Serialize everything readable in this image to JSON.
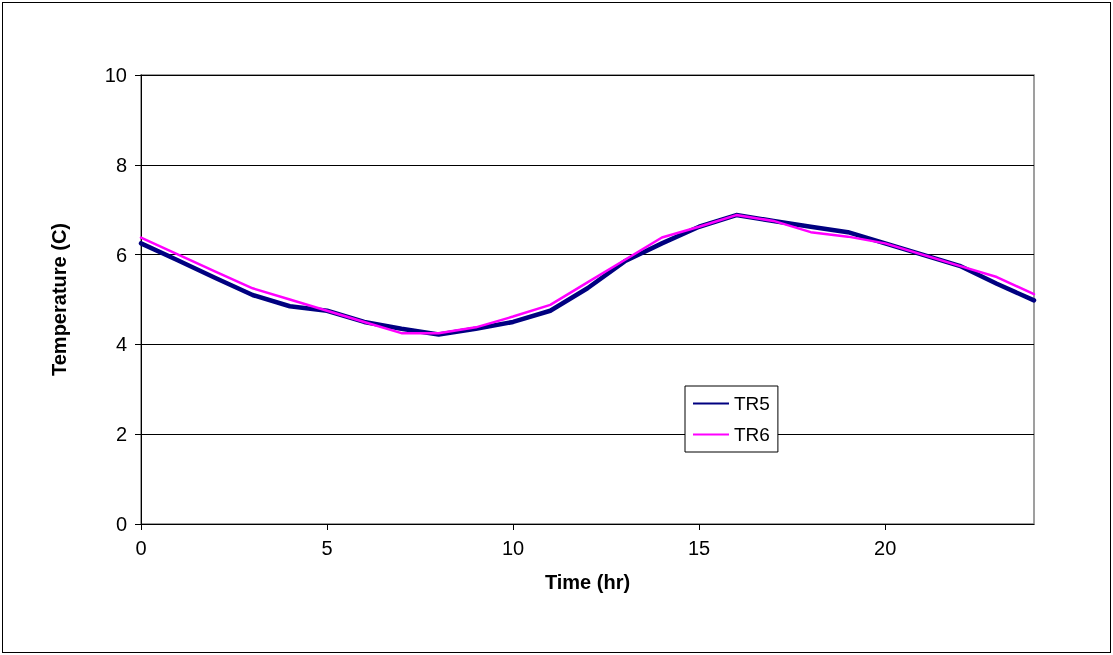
{
  "chart_data": {
    "type": "line",
    "xlabel": "Time (hr)",
    "ylabel": "Temperature (C)",
    "x": [
      0,
      1,
      2,
      3,
      4,
      5,
      6,
      7,
      8,
      9,
      10,
      11,
      12,
      13,
      14,
      15,
      16,
      17,
      18,
      19,
      20,
      21,
      22,
      23,
      24
    ],
    "series": [
      {
        "name": "TR5",
        "color": "#000080",
        "values": [
          6.25,
          5.87,
          5.48,
          5.1,
          4.85,
          4.75,
          4.5,
          4.35,
          4.22,
          4.35,
          4.5,
          4.75,
          5.25,
          5.85,
          6.25,
          6.62,
          6.88,
          6.75,
          6.62,
          6.5,
          6.25,
          6.0,
          5.75,
          5.35,
          4.98
        ]
      },
      {
        "name": "TR6",
        "color": "#ff00ff",
        "values": [
          6.38,
          6.0,
          5.62,
          5.25,
          5.0,
          4.75,
          4.5,
          4.25,
          4.25,
          4.38,
          4.62,
          4.88,
          5.38,
          5.88,
          6.38,
          6.62,
          6.88,
          6.75,
          6.5,
          6.4,
          6.25,
          6.0,
          5.75,
          5.5,
          5.12
        ]
      }
    ],
    "xlim": [
      0,
      24
    ],
    "xticks": [
      0,
      5,
      10,
      15,
      20
    ],
    "ylim": [
      0,
      10
    ],
    "yticks": [
      0,
      2,
      4,
      6,
      8,
      10
    ],
    "grid": "y",
    "legend": "right",
    "marker": "none",
    "line_style": "solid"
  }
}
